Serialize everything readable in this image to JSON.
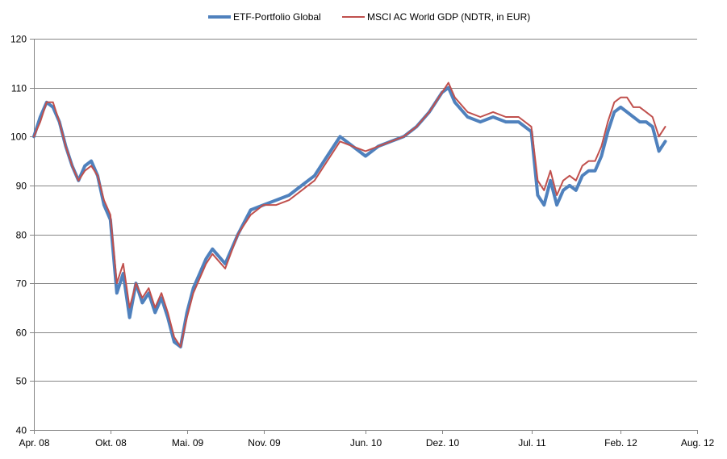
{
  "chart_data": {
    "type": "line",
    "title": "",
    "xlabel": "",
    "ylabel": "",
    "ylim": [
      40,
      120
    ],
    "yticks": [
      40,
      50,
      60,
      70,
      80,
      90,
      100,
      110,
      120
    ],
    "ytick_labels": [
      "40",
      "50",
      "60",
      "70",
      "80",
      "90",
      "100",
      "110",
      "120"
    ],
    "xlim": [
      0,
      52
    ],
    "xticks": [
      0,
      6,
      12,
      18,
      26,
      32,
      39,
      46,
      52
    ],
    "xtick_labels": [
      "Apr. 08",
      "Okt. 08",
      "Mai. 09",
      "Nov. 09",
      "Jun. 10",
      "Dez. 10",
      "Jul. 11",
      "Feb. 12",
      "Aug. 12"
    ],
    "grid": "horizontal",
    "legend_position": "top",
    "x_unit": "months since Apr. 08",
    "series": [
      {
        "name": "ETF-Portfolio Global",
        "color": "#4F81BD",
        "x": [
          0,
          0.5,
          1,
          1.5,
          2,
          2.5,
          3,
          3.5,
          4,
          4.5,
          5,
          5.5,
          6,
          6.5,
          7,
          7.5,
          8,
          8.5,
          9,
          9.5,
          10,
          10.5,
          11,
          11.5,
          12,
          12.5,
          13,
          13.5,
          14,
          15,
          16,
          17,
          18,
          19,
          20,
          21,
          22,
          23,
          24,
          25,
          26,
          27,
          28,
          29,
          30,
          31,
          32,
          32.5,
          33,
          34,
          35,
          36,
          37,
          38,
          39,
          39.5,
          40,
          40.5,
          41,
          41.5,
          42,
          42.5,
          43,
          43.5,
          44,
          44.5,
          45,
          45.5,
          46,
          46.5,
          47,
          47.5,
          48,
          48.5,
          49,
          49.5
        ],
        "values": [
          100,
          104,
          107,
          106,
          103,
          98,
          94,
          91,
          94,
          95,
          92,
          86,
          83,
          68,
          72,
          63,
          70,
          66,
          68,
          64,
          67,
          63,
          58,
          57,
          64,
          69,
          72,
          75,
          77,
          74,
          80,
          85,
          86,
          87,
          88,
          90,
          92,
          96,
          100,
          98,
          96,
          98,
          99,
          100,
          102,
          105,
          109,
          110,
          107,
          104,
          103,
          104,
          103,
          103,
          101,
          88,
          86,
          91,
          86,
          89,
          90,
          89,
          92,
          93,
          93,
          96,
          101,
          105,
          106,
          105,
          104,
          103,
          103,
          102,
          97,
          99
        ]
      },
      {
        "name": "MSCI AC World GDP (NDTR, in EUR)",
        "color": "#C0504D",
        "x": [
          0,
          0.5,
          1,
          1.5,
          2,
          2.5,
          3,
          3.5,
          4,
          4.5,
          5,
          5.5,
          6,
          6.5,
          7,
          7.5,
          8,
          8.5,
          9,
          9.5,
          10,
          10.5,
          11,
          11.5,
          12,
          12.5,
          13,
          13.5,
          14,
          15,
          16,
          17,
          18,
          19,
          20,
          21,
          22,
          23,
          24,
          25,
          26,
          27,
          28,
          29,
          30,
          31,
          32,
          32.5,
          33,
          34,
          35,
          36,
          37,
          38,
          39,
          39.5,
          40,
          40.5,
          41,
          41.5,
          42,
          42.5,
          43,
          43.5,
          44,
          44.5,
          45,
          45.5,
          46,
          46.5,
          47,
          47.5,
          48,
          48.5,
          49,
          49.5
        ],
        "values": [
          100,
          103,
          107,
          107,
          103,
          98,
          94,
          91,
          93,
          94,
          92,
          87,
          84,
          70,
          74,
          65,
          70,
          67,
          69,
          65,
          68,
          64,
          59,
          57,
          63,
          68,
          71,
          74,
          76,
          73,
          80,
          84,
          86,
          86,
          87,
          89,
          91,
          95,
          99,
          98,
          97,
          98,
          99,
          100,
          102,
          105,
          109,
          111,
          108,
          105,
          104,
          105,
          104,
          104,
          102,
          91,
          89,
          93,
          88,
          91,
          92,
          91,
          94,
          95,
          95,
          98,
          103,
          107,
          108,
          108,
          106,
          106,
          105,
          104,
          100,
          102
        ]
      }
    ]
  }
}
